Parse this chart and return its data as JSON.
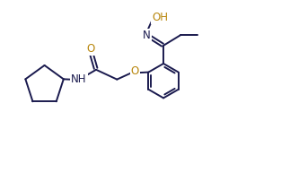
{
  "background_color": "#ffffff",
  "bond_color": "#1a1a4e",
  "atom_label_color_O": "#b8860b",
  "atom_label_color_N": "#1a1a4e",
  "line_width": 1.4,
  "font_size": 8.5,
  "figsize": [
    3.13,
    1.92
  ],
  "dpi": 100,
  "xlim": [
    0,
    10
  ],
  "ylim": [
    0,
    6.15
  ]
}
